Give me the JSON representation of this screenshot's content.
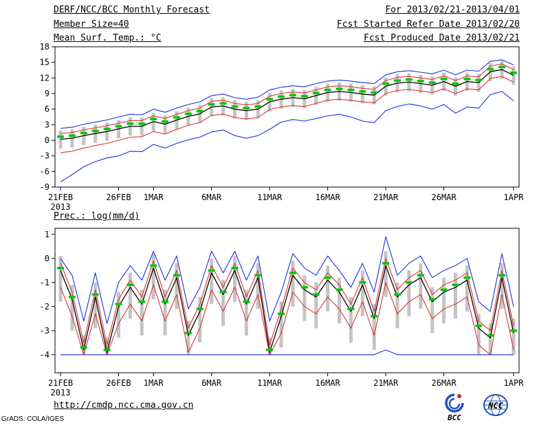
{
  "header": {
    "left": [
      "DERF/NCC/BCC Monthly Forecast",
      "Member Size=40"
    ],
    "right": [
      "For 2013/02/21-2013/04/01",
      "Fcst Started Refer Date 2013/02/20",
      "Fcst Produced Date 2013/02/21"
    ]
  },
  "footer": {
    "url": "http://cmdp.ncc.cma.gov.cn",
    "credit": "GrADS: COLA/IGES"
  },
  "logos": {
    "bcc": "BCC",
    "ncc": "NCC"
  },
  "colors": {
    "axis": "#000000",
    "blue_line": "#1a2fe0",
    "red_line": "#d83434",
    "black_line": "#000000",
    "green_dash": "#00c800",
    "spread_bar": "#c4c4c4"
  },
  "chart_data": [
    {
      "type": "line",
      "title": "Mean Surf. Temp.: °C",
      "ylabel": "°C",
      "ylim": [
        -9,
        18
      ],
      "ytick_step": 3,
      "x_sub_label": "2013",
      "x_tick_indices": [
        0,
        5,
        8,
        13,
        18,
        23,
        28,
        33,
        39
      ],
      "x_tick_labels": [
        "21FEB",
        "26FEB",
        "1MAR",
        "6MAR",
        "11MAR",
        "16MAR",
        "21MAR",
        "26MAR",
        "1APR"
      ],
      "dates": [
        "21FEB",
        "22FEB",
        "23FEB",
        "24FEB",
        "25FEB",
        "26FEB",
        "27FEB",
        "28FEB",
        "1MAR",
        "2MAR",
        "3MAR",
        "4MAR",
        "5MAR",
        "6MAR",
        "7MAR",
        "8MAR",
        "9MAR",
        "10MAR",
        "11MAR",
        "12MAR",
        "13MAR",
        "14MAR",
        "15MAR",
        "16MAR",
        "17MAR",
        "18MAR",
        "19MAR",
        "20MAR",
        "21MAR",
        "22MAR",
        "23MAR",
        "24MAR",
        "25MAR",
        "26MAR",
        "27MAR",
        "28MAR",
        "29MAR",
        "30MAR",
        "31MAR",
        "1APR"
      ],
      "series": [
        {
          "name": "blue_upper_max",
          "color": "#1a2fe0",
          "style": "solid",
          "width": 1.1,
          "values": [
            2.3,
            2.5,
            3.1,
            3.5,
            3.9,
            4.5,
            5.0,
            4.9,
            6.0,
            5.4,
            6.2,
            6.9,
            7.4,
            8.6,
            8.9,
            8.2,
            7.9,
            8.3,
            9.7,
            10.2,
            10.5,
            10.3,
            10.9,
            11.4,
            11.6,
            11.4,
            11.1,
            10.9,
            12.6,
            13.2,
            13.4,
            13.1,
            12.8,
            13.5,
            12.6,
            13.5,
            13.3,
            15.2,
            15.5,
            14.5
          ]
        },
        {
          "name": "red_upper",
          "color": "#d83434",
          "style": "solid",
          "width": 1.1,
          "values": [
            1.3,
            1.5,
            2.0,
            2.4,
            2.8,
            3.3,
            3.8,
            3.8,
            4.7,
            4.2,
            5.0,
            5.7,
            6.2,
            7.5,
            7.7,
            7.1,
            6.8,
            7.1,
            8.5,
            9.0,
            9.3,
            9.1,
            9.7,
            10.3,
            10.5,
            10.3,
            10.0,
            9.8,
            11.5,
            12.1,
            12.3,
            12.0,
            11.7,
            12.4,
            11.5,
            12.4,
            12.2,
            14.3,
            14.7,
            13.6
          ]
        },
        {
          "name": "ensemble_mean_black",
          "color": "#000000",
          "style": "solid",
          "width": 1.3,
          "values": [
            0.2,
            0.4,
            0.9,
            1.3,
            1.7,
            2.2,
            2.7,
            2.7,
            3.6,
            3.1,
            3.9,
            4.6,
            5.1,
            6.4,
            6.6,
            6.0,
            5.7,
            6.0,
            7.4,
            7.9,
            8.2,
            8.0,
            8.6,
            9.2,
            9.4,
            9.2,
            8.9,
            8.7,
            10.4,
            11.0,
            11.2,
            10.9,
            10.6,
            11.3,
            10.4,
            11.3,
            11.1,
            13.2,
            13.6,
            12.5
          ]
        },
        {
          "name": "red_lower",
          "color": "#d83434",
          "style": "solid",
          "width": 1.1,
          "values": [
            -2.4,
            -2.1,
            -1.5,
            -1.0,
            -0.6,
            0.0,
            0.6,
            0.7,
            1.7,
            1.2,
            2.1,
            2.9,
            3.4,
            4.8,
            5.0,
            4.4,
            4.1,
            4.4,
            5.9,
            6.4,
            6.7,
            6.5,
            7.1,
            7.7,
            7.9,
            7.7,
            7.4,
            7.2,
            9.0,
            9.6,
            9.8,
            9.5,
            9.2,
            9.9,
            9.0,
            9.9,
            9.7,
            11.9,
            12.3,
            11.2
          ]
        },
        {
          "name": "blue_lower_min",
          "color": "#1a2fe0",
          "style": "solid",
          "width": 1.1,
          "values": [
            -8.0,
            -6.6,
            -5.1,
            -4.1,
            -3.4,
            -3.0,
            -2.1,
            -2.2,
            -0.8,
            -1.5,
            -0.6,
            0.1,
            0.6,
            1.6,
            2.0,
            0.9,
            0.4,
            0.9,
            2.1,
            3.5,
            4.0,
            3.7,
            4.2,
            4.7,
            5.0,
            4.5,
            3.7,
            3.4,
            5.7,
            6.5,
            7.0,
            6.6,
            6.0,
            6.9,
            5.2,
            6.4,
            6.2,
            8.8,
            9.4,
            7.6
          ]
        },
        {
          "name": "green_median_dashes",
          "color": "#00c800",
          "style": "dashes",
          "width": 3.5,
          "values": [
            0.7,
            0.9,
            1.4,
            1.8,
            2.2,
            2.7,
            3.2,
            3.2,
            4.1,
            3.6,
            4.4,
            5.1,
            5.6,
            6.9,
            7.1,
            6.5,
            6.2,
            6.5,
            7.9,
            8.4,
            8.7,
            8.5,
            9.1,
            9.7,
            9.9,
            9.7,
            9.4,
            9.2,
            10.9,
            11.5,
            11.7,
            11.4,
            11.1,
            11.8,
            10.9,
            11.8,
            11.6,
            13.7,
            14.1,
            13.0
          ]
        }
      ],
      "spread_bars": {
        "color": "#c4c4c4",
        "low": [
          -1.6,
          -1.4,
          -0.9,
          -0.5,
          -0.1,
          0.4,
          0.9,
          0.9,
          1.8,
          1.3,
          2.1,
          2.8,
          3.3,
          4.6,
          4.8,
          4.2,
          3.9,
          4.2,
          5.6,
          6.1,
          6.4,
          6.2,
          6.8,
          7.4,
          7.6,
          7.4,
          7.1,
          6.9,
          8.6,
          9.2,
          9.4,
          9.1,
          8.8,
          9.5,
          8.6,
          9.5,
          9.3,
          11.4,
          11.8,
          10.7
        ],
        "high": [
          1.9,
          2.1,
          2.6,
          3.0,
          3.4,
          3.9,
          4.4,
          4.4,
          5.3,
          4.8,
          5.6,
          6.3,
          6.8,
          8.1,
          8.3,
          7.7,
          7.4,
          7.7,
          9.1,
          9.6,
          9.9,
          9.7,
          10.3,
          10.9,
          11.1,
          10.9,
          10.6,
          10.4,
          12.1,
          12.7,
          12.9,
          12.6,
          12.3,
          13.0,
          12.1,
          13.0,
          12.8,
          14.9,
          15.3,
          14.2
        ]
      }
    },
    {
      "type": "line",
      "title": "Prec.: log(mm/d)",
      "ylabel": "log(mm/d)",
      "ylim": [
        -4,
        1
      ],
      "ytick_step": 1,
      "x_sub_label": "2013",
      "x_tick_indices": [
        0,
        5,
        8,
        13,
        18,
        23,
        28,
        33,
        39
      ],
      "x_tick_labels": [
        "21FEB",
        "26FEB",
        "1MAR",
        "6MAR",
        "11MAR",
        "16MAR",
        "21MAR",
        "26MAR",
        "1APR"
      ],
      "dates": [
        "21FEB",
        "22FEB",
        "23FEB",
        "24FEB",
        "25FEB",
        "26FEB",
        "27FEB",
        "28FEB",
        "1MAR",
        "2MAR",
        "3MAR",
        "4MAR",
        "5MAR",
        "6MAR",
        "7MAR",
        "8MAR",
        "9MAR",
        "10MAR",
        "11MAR",
        "12MAR",
        "13MAR",
        "14MAR",
        "15MAR",
        "16MAR",
        "17MAR",
        "18MAR",
        "19MAR",
        "20MAR",
        "21MAR",
        "22MAR",
        "23MAR",
        "24MAR",
        "25MAR",
        "26MAR",
        "27MAR",
        "28MAR",
        "29MAR",
        "30MAR",
        "31MAR",
        "1APR"
      ],
      "series": [
        {
          "name": "blue_upper_max",
          "color": "#1a2fe0",
          "style": "solid",
          "width": 1.1,
          "values": [
            0.0,
            -0.7,
            -2.6,
            -0.6,
            -2.7,
            -1.0,
            -0.3,
            -0.9,
            0.3,
            -0.9,
            0.1,
            -2.1,
            -1.2,
            0.3,
            -0.6,
            0.3,
            -0.9,
            0.1,
            -2.6,
            -1.4,
            0.2,
            -0.4,
            -0.7,
            0.1,
            -0.5,
            -1.2,
            -0.2,
            -1.4,
            0.9,
            -0.7,
            -0.2,
            0.1,
            -0.8,
            -0.5,
            -0.3,
            0.0,
            -1.8,
            -2.2,
            0.2,
            -2.0
          ]
        },
        {
          "name": "red_upper",
          "color": "#d83434",
          "style": "solid",
          "width": 1.1,
          "values": [
            -0.2,
            -1.4,
            -3.5,
            -1.3,
            -3.6,
            -1.7,
            -0.9,
            -1.6,
            -0.1,
            -1.6,
            -0.5,
            -2.9,
            -1.9,
            -0.3,
            -1.2,
            -0.2,
            -1.6,
            -0.5,
            -3.6,
            -2.1,
            -0.4,
            -1.0,
            -1.3,
            -0.6,
            -1.1,
            -1.9,
            -0.8,
            -2.2,
            0.0,
            -1.3,
            -0.8,
            -0.5,
            -1.5,
            -1.1,
            -0.9,
            -0.6,
            -2.6,
            -3.0,
            -0.5,
            -2.8
          ]
        },
        {
          "name": "ensemble_mean_black",
          "color": "#000000",
          "style": "solid",
          "width": 1.3,
          "values": [
            -0.5,
            -1.7,
            -3.8,
            -1.6,
            -3.9,
            -2.0,
            -1.2,
            -1.9,
            -0.4,
            -1.9,
            -0.8,
            -3.2,
            -2.2,
            -0.6,
            -1.5,
            -0.5,
            -1.9,
            -0.8,
            -3.9,
            -2.4,
            -0.7,
            -1.3,
            -1.6,
            -0.9,
            -1.4,
            -2.2,
            -1.1,
            -2.5,
            -0.3,
            -1.6,
            -1.1,
            -0.8,
            -1.8,
            -1.4,
            -1.2,
            -0.9,
            -2.9,
            -3.3,
            -0.8,
            -3.1
          ]
        },
        {
          "name": "red_lower",
          "color": "#d83434",
          "style": "solid",
          "width": 1.1,
          "values": [
            -1.2,
            -2.4,
            -4.0,
            -2.3,
            -4.0,
            -2.7,
            -1.9,
            -2.6,
            -1.1,
            -2.6,
            -1.5,
            -3.9,
            -2.9,
            -1.3,
            -2.2,
            -1.2,
            -2.6,
            -1.5,
            -4.0,
            -3.1,
            -1.4,
            -2.0,
            -2.3,
            -1.6,
            -2.1,
            -2.9,
            -1.8,
            -3.2,
            -1.0,
            -2.3,
            -1.8,
            -1.5,
            -2.5,
            -2.1,
            -1.9,
            -1.6,
            -3.6,
            -4.0,
            -1.5,
            -3.8
          ]
        },
        {
          "name": "blue_lower_min",
          "color": "#1a2fe0",
          "style": "solid",
          "width": 1.1,
          "values": [
            -4.0,
            -4.0,
            -4.0,
            -4.0,
            -4.0,
            -4.0,
            -4.0,
            -4.0,
            -4.0,
            -4.0,
            -4.0,
            -4.0,
            -4.0,
            -4.0,
            -4.0,
            -4.0,
            -4.0,
            -4.0,
            -4.0,
            -4.0,
            -4.0,
            -4.0,
            -4.0,
            -4.0,
            -4.0,
            -4.0,
            -4.0,
            -4.0,
            -3.8,
            -4.0,
            -4.0,
            -4.0,
            -4.0,
            -4.0,
            -4.0,
            -4.0,
            -4.0,
            -4.0,
            -4.0,
            -4.0
          ]
        },
        {
          "name": "green_median_dashes",
          "color": "#00c800",
          "style": "dashes",
          "width": 3.5,
          "values": [
            -0.4,
            -1.6,
            -3.7,
            -1.5,
            -3.8,
            -1.9,
            -1.1,
            -1.8,
            -0.3,
            -1.8,
            -0.7,
            -3.1,
            -2.1,
            -0.5,
            -1.4,
            -0.4,
            -1.8,
            -0.7,
            -3.8,
            -2.3,
            -0.6,
            -1.2,
            -1.5,
            -0.8,
            -1.3,
            -2.1,
            -1.0,
            -2.4,
            -0.2,
            -1.5,
            -1.0,
            -0.7,
            -1.7,
            -1.3,
            -1.1,
            -0.8,
            -2.8,
            -3.2,
            -0.7,
            -3.0
          ]
        }
      ],
      "spread_bars": {
        "color": "#c4c4c4",
        "low": [
          -1.8,
          -3.0,
          -4.0,
          -2.9,
          -4.0,
          -3.3,
          -2.5,
          -3.2,
          -1.7,
          -3.2,
          -2.1,
          -4.0,
          -3.5,
          -1.9,
          -2.8,
          -1.8,
          -3.2,
          -2.1,
          -4.0,
          -3.7,
          -2.0,
          -2.6,
          -2.9,
          -2.2,
          -2.7,
          -3.5,
          -2.4,
          -3.8,
          -1.6,
          -2.9,
          -2.4,
          -2.1,
          -3.1,
          -2.7,
          -2.5,
          -2.2,
          -4.0,
          -4.0,
          -2.1,
          -4.0
        ],
        "high": [
          0.1,
          -1.1,
          -3.2,
          -1.0,
          -3.3,
          -1.4,
          -0.6,
          -1.3,
          0.2,
          -1.3,
          -0.2,
          -2.6,
          -1.6,
          0.0,
          -0.9,
          0.1,
          -1.3,
          -0.2,
          -3.3,
          -1.8,
          -0.1,
          -0.7,
          -1.0,
          -0.3,
          -0.8,
          -1.6,
          -0.5,
          -1.9,
          0.3,
          -1.0,
          -0.5,
          -0.2,
          -1.2,
          -0.8,
          -0.6,
          -0.3,
          -2.3,
          -2.7,
          -0.2,
          -2.5
        ]
      }
    }
  ]
}
